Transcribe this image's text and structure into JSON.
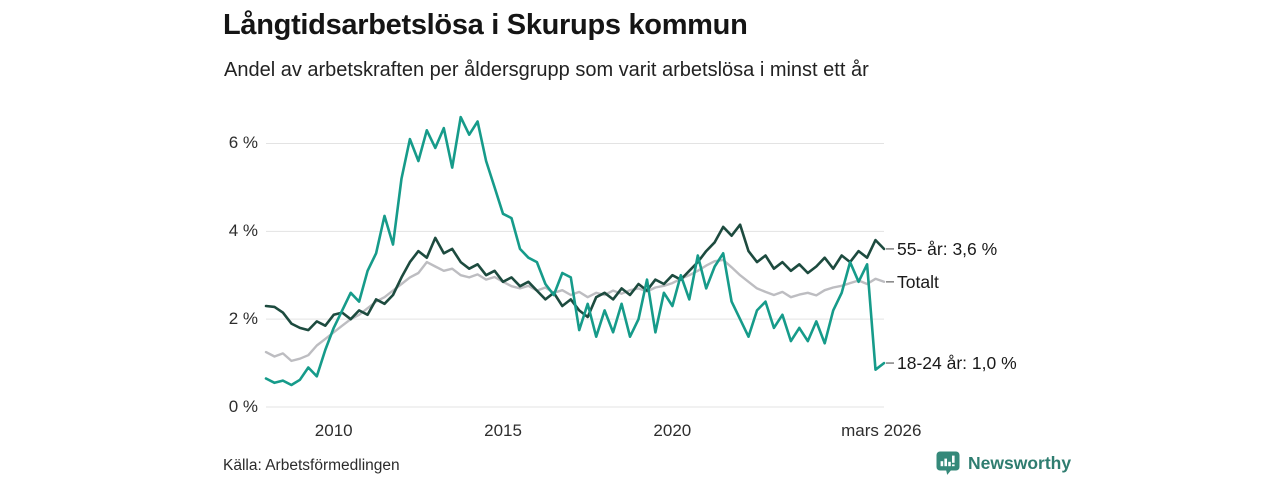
{
  "header": {
    "title": "Långtidsarbetslösa i Skurups kommun",
    "subtitle": "Andel av arbetskraften per åldersgrupp som varit arbetslösa i minst ett år"
  },
  "source": "Källa: Arbetsförmedlingen",
  "brand": {
    "name": "Newsworthy",
    "icon": "newsworthy-speech-bubble-chart-icon",
    "icon_color": "#35897a",
    "text_color": "#2f7d70"
  },
  "chart_data": {
    "type": "line",
    "title": "Långtidsarbetslösa i Skurups kommun",
    "subtitle": "Andel av arbetskraften per åldersgrupp som varit arbetslösa i minst ett år",
    "xlabel": "",
    "ylabel": "",
    "grid": "horizontal",
    "grid_color": "#e3e3e3",
    "legend_position": "right-end-labels",
    "end_label_tick_color": "#8a8a8a",
    "xlim": [
      2008,
      2026.25
    ],
    "ylim": [
      0,
      6.8
    ],
    "x_start": 2008,
    "x_step": 0.25,
    "y_ticks": [
      {
        "value": 0,
        "label": "0 %"
      },
      {
        "value": 2,
        "label": "2 %"
      },
      {
        "value": 4,
        "label": "4 %"
      },
      {
        "value": 6,
        "label": "6 %"
      }
    ],
    "x_ticks": [
      {
        "value": 2010,
        "label": "2010"
      },
      {
        "value": 2015,
        "label": "2015"
      },
      {
        "value": 2020,
        "label": "2020"
      },
      {
        "value": 2026.17,
        "label": "mars 2026"
      }
    ],
    "series": [
      {
        "name": "Totalt",
        "label": "Totalt",
        "end_value": null,
        "color": "#bdbdc1",
        "width": 2.4,
        "values": [
          1.25,
          1.15,
          1.22,
          1.05,
          1.1,
          1.18,
          1.4,
          1.55,
          1.7,
          1.85,
          2.0,
          2.1,
          2.25,
          2.4,
          2.5,
          2.65,
          2.8,
          2.95,
          3.05,
          3.3,
          3.2,
          3.1,
          3.15,
          3.0,
          2.95,
          3.02,
          2.9,
          2.96,
          2.85,
          2.75,
          2.7,
          2.76,
          2.65,
          2.72,
          2.6,
          2.66,
          2.55,
          2.62,
          2.5,
          2.6,
          2.55,
          2.65,
          2.58,
          2.66,
          2.7,
          2.63,
          2.72,
          2.76,
          2.82,
          2.92,
          3.0,
          3.1,
          3.22,
          3.32,
          3.35,
          3.18,
          3.0,
          2.85,
          2.7,
          2.62,
          2.55,
          2.62,
          2.5,
          2.56,
          2.6,
          2.54,
          2.66,
          2.72,
          2.76,
          2.82,
          2.88,
          2.8,
          2.92,
          2.85
        ]
      },
      {
        "name": "55- år",
        "label": "55- år: 3,6 %",
        "end_value": "3,6 %",
        "color": "#1d4b3f",
        "width": 2.6,
        "values": [
          2.3,
          2.28,
          2.15,
          1.9,
          1.8,
          1.75,
          1.95,
          1.85,
          2.1,
          2.15,
          2.0,
          2.2,
          2.1,
          2.45,
          2.35,
          2.55,
          2.95,
          3.3,
          3.55,
          3.4,
          3.85,
          3.5,
          3.6,
          3.3,
          3.15,
          3.25,
          3.0,
          3.1,
          2.85,
          2.95,
          2.75,
          2.85,
          2.65,
          2.45,
          2.6,
          2.3,
          2.45,
          2.2,
          2.05,
          2.5,
          2.6,
          2.45,
          2.7,
          2.55,
          2.8,
          2.65,
          2.9,
          2.8,
          3.0,
          2.9,
          3.1,
          3.3,
          3.55,
          3.75,
          4.1,
          3.9,
          4.15,
          3.55,
          3.3,
          3.45,
          3.15,
          3.3,
          3.1,
          3.25,
          3.05,
          3.2,
          3.4,
          3.15,
          3.45,
          3.3,
          3.55,
          3.4,
          3.8,
          3.6
        ]
      },
      {
        "name": "18-24 år",
        "label": "18-24 år: 1,0 %",
        "end_value": "1,0 %",
        "color": "#169b8a",
        "width": 2.6,
        "values": [
          0.65,
          0.55,
          0.6,
          0.5,
          0.62,
          0.9,
          0.7,
          1.3,
          1.8,
          2.2,
          2.6,
          2.4,
          3.1,
          3.5,
          4.35,
          3.7,
          5.2,
          6.1,
          5.6,
          6.3,
          5.9,
          6.35,
          5.45,
          6.6,
          6.2,
          6.5,
          5.6,
          5.0,
          4.4,
          4.3,
          3.6,
          3.4,
          3.3,
          2.8,
          2.55,
          3.05,
          2.95,
          1.75,
          2.35,
          1.6,
          2.2,
          1.7,
          2.35,
          1.6,
          2.0,
          2.9,
          1.7,
          2.6,
          2.3,
          3.0,
          2.45,
          3.45,
          2.7,
          3.2,
          3.5,
          2.4,
          2.0,
          1.6,
          2.2,
          2.4,
          1.8,
          2.1,
          1.5,
          1.8,
          1.5,
          1.95,
          1.45,
          2.2,
          2.6,
          3.3,
          2.85,
          3.25,
          0.85,
          1.0
        ]
      }
    ]
  }
}
